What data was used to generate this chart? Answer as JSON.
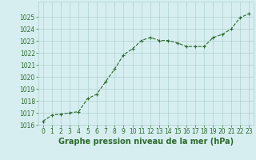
{
  "x": [
    0,
    1,
    2,
    3,
    4,
    5,
    6,
    7,
    8,
    9,
    10,
    11,
    12,
    13,
    14,
    15,
    16,
    17,
    18,
    19,
    20,
    21,
    22,
    23
  ],
  "y": [
    1016.3,
    1016.8,
    1016.9,
    1017.0,
    1017.1,
    1018.2,
    1018.55,
    1019.6,
    1020.65,
    1021.85,
    1022.35,
    1023.05,
    1023.3,
    1023.05,
    1023.05,
    1022.85,
    1022.55,
    1022.55,
    1022.55,
    1023.3,
    1023.55,
    1024.0,
    1024.95,
    1025.3
  ],
  "line_color": "#2d6a2d",
  "marker": "+",
  "markersize": 3,
  "linewidth": 0.8,
  "linestyle": "--",
  "bg_color": "#d6eef0",
  "grid_color": "#b0d0cc",
  "xlabel": "Graphe pression niveau de la mer (hPa)",
  "xlabel_fontsize": 7,
  "xlabel_bold": true,
  "ylim": [
    1016,
    1026
  ],
  "xlim": [
    -0.5,
    23.5
  ],
  "yticks": [
    1016,
    1017,
    1018,
    1019,
    1020,
    1021,
    1022,
    1023,
    1024,
    1025
  ],
  "xticks": [
    0,
    1,
    2,
    3,
    4,
    5,
    6,
    7,
    8,
    9,
    10,
    11,
    12,
    13,
    14,
    15,
    16,
    17,
    18,
    19,
    20,
    21,
    22,
    23
  ],
  "tick_fontsize": 5.5,
  "tick_color": "#2d6a2d"
}
